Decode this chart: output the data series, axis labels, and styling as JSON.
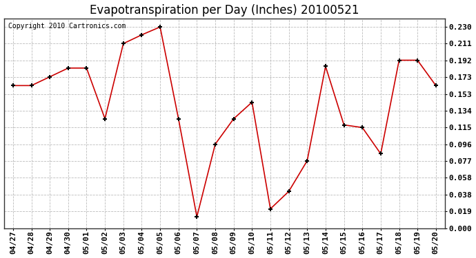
{
  "title": "Evapotranspiration per Day (Inches) 20100521",
  "copyright_text": "Copyright 2010 Cartronics.com",
  "x_labels": [
    "04/27",
    "04/28",
    "04/29",
    "04/30",
    "05/01",
    "05/02",
    "05/03",
    "05/04",
    "05/05",
    "05/06",
    "05/07",
    "05/08",
    "05/09",
    "05/10",
    "05/11",
    "05/12",
    "05/13",
    "05/14",
    "05/15",
    "05/16",
    "05/17",
    "05/18",
    "05/19",
    "05/20"
  ],
  "y_values": [
    0.163,
    0.163,
    0.173,
    0.183,
    0.183,
    0.125,
    0.211,
    0.221,
    0.23,
    0.125,
    0.013,
    0.096,
    0.125,
    0.144,
    0.022,
    0.042,
    0.077,
    0.185,
    0.118,
    0.115,
    0.085,
    0.192,
    0.192,
    0.163
  ],
  "line_color": "#cc0000",
  "marker": "+",
  "marker_size": 5,
  "marker_linewidth": 1.5,
  "linewidth": 1.2,
  "y_ticks": [
    0.0,
    0.019,
    0.038,
    0.058,
    0.077,
    0.096,
    0.115,
    0.134,
    0.153,
    0.173,
    0.192,
    0.211,
    0.23
  ],
  "ylim": [
    0.0,
    0.24
  ],
  "xlim": [
    -0.5,
    23.5
  ],
  "background_color": "#ffffff",
  "grid_color": "#bbbbbb",
  "title_fontsize": 12,
  "tick_fontsize": 8,
  "copyright_fontsize": 7,
  "figsize": [
    6.9,
    3.75
  ],
  "dpi": 100
}
